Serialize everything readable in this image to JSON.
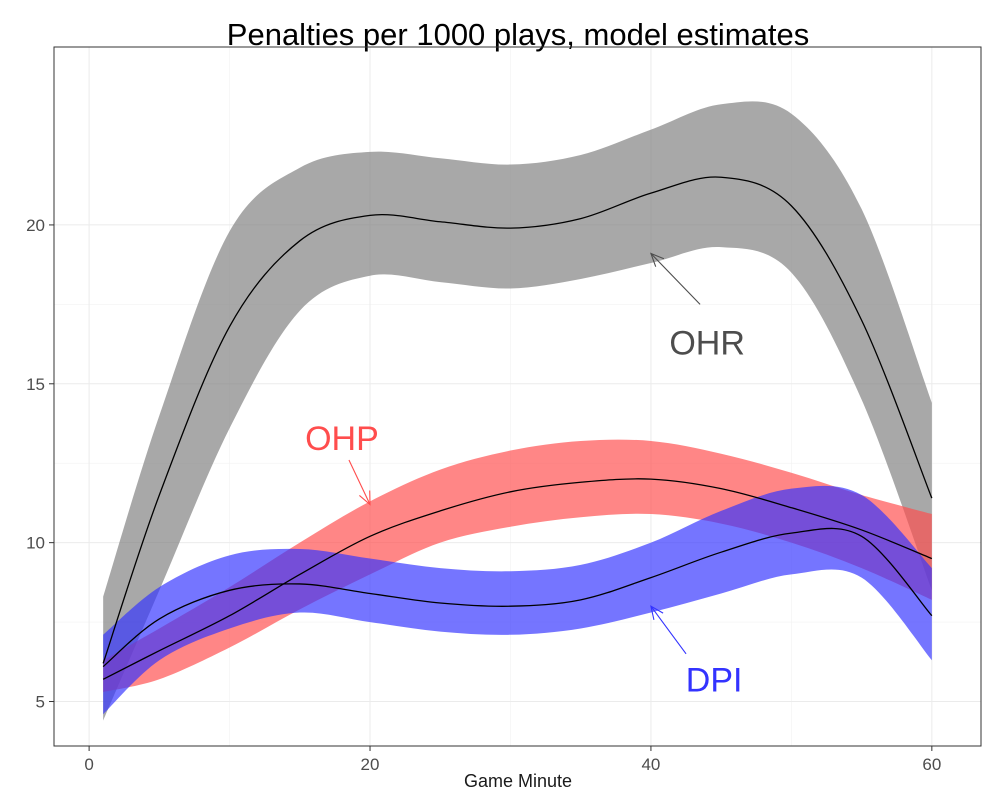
{
  "chart_data": {
    "type": "line",
    "title": "Penalties per 1000 plays, model estimates",
    "xlabel": "Game Minute",
    "ylabel": "",
    "xlim": [
      -2.5,
      63.5
    ],
    "ylim": [
      3.6,
      25.6
    ],
    "x_ticks": [
      0,
      20,
      40,
      60
    ],
    "y_ticks": [
      5,
      10,
      15,
      20
    ],
    "grid": true,
    "legend": "none",
    "x": [
      1,
      5,
      10,
      15,
      20,
      25,
      30,
      35,
      40,
      45,
      50,
      55,
      60
    ],
    "series": [
      {
        "name": "OHR",
        "color": "#000000",
        "band_color": "#7f7f7f",
        "estimate": [
          6.2,
          11.5,
          16.8,
          19.5,
          20.3,
          20.1,
          19.9,
          20.2,
          21.0,
          21.5,
          20.6,
          17.0,
          11.4
        ],
        "lower": [
          4.4,
          8.5,
          13.6,
          17.3,
          18.4,
          18.2,
          18.0,
          18.3,
          18.8,
          19.3,
          18.5,
          14.5,
          8.5
        ],
        "upper": [
          8.3,
          14.0,
          19.8,
          21.8,
          22.3,
          22.1,
          21.9,
          22.2,
          23.0,
          23.8,
          23.5,
          20.5,
          14.4
        ]
      },
      {
        "name": "OHP",
        "color": "#000000",
        "band_color": "#ff4d4d",
        "estimate": [
          5.7,
          6.6,
          7.7,
          9.0,
          10.2,
          11.0,
          11.6,
          11.9,
          12.0,
          11.7,
          11.1,
          10.4,
          9.5
        ],
        "lower": [
          5.3,
          5.7,
          6.7,
          7.9,
          9.0,
          10.0,
          10.5,
          10.8,
          10.9,
          10.6,
          10.0,
          9.2,
          8.2
        ],
        "upper": [
          6.3,
          7.3,
          8.6,
          10.0,
          11.3,
          12.3,
          12.9,
          13.2,
          13.2,
          12.8,
          12.2,
          11.5,
          10.9
        ]
      },
      {
        "name": "DPI",
        "color": "#000000",
        "band_color": "#3333ff",
        "estimate": [
          6.1,
          7.6,
          8.5,
          8.7,
          8.4,
          8.1,
          8.0,
          8.2,
          8.9,
          9.7,
          10.3,
          10.2,
          7.7
        ],
        "lower": [
          4.6,
          6.3,
          7.3,
          7.8,
          7.5,
          7.2,
          7.1,
          7.3,
          7.8,
          8.4,
          9.0,
          8.9,
          6.3
        ],
        "upper": [
          7.1,
          8.6,
          9.6,
          9.8,
          9.5,
          9.2,
          9.1,
          9.3,
          10.0,
          11.0,
          11.7,
          11.5,
          9.2
        ]
      }
    ],
    "annotations": [
      {
        "text": "OHR",
        "color": "#4d4d4d",
        "label_at": [
          44,
          16.3
        ],
        "arrow_from": [
          43.5,
          17.5
        ],
        "arrow_to": [
          40,
          19.1
        ]
      },
      {
        "text": "OHP",
        "color": "#ff4d4d",
        "label_at": [
          18,
          13.3
        ],
        "arrow_from": [
          18.5,
          12.6
        ],
        "arrow_to": [
          20,
          11.2
        ]
      },
      {
        "text": "DPI",
        "color": "#3333ff",
        "label_at": [
          44.5,
          5.7
        ],
        "arrow_from": [
          42.5,
          6.5
        ],
        "arrow_to": [
          40,
          8.0
        ]
      }
    ]
  }
}
